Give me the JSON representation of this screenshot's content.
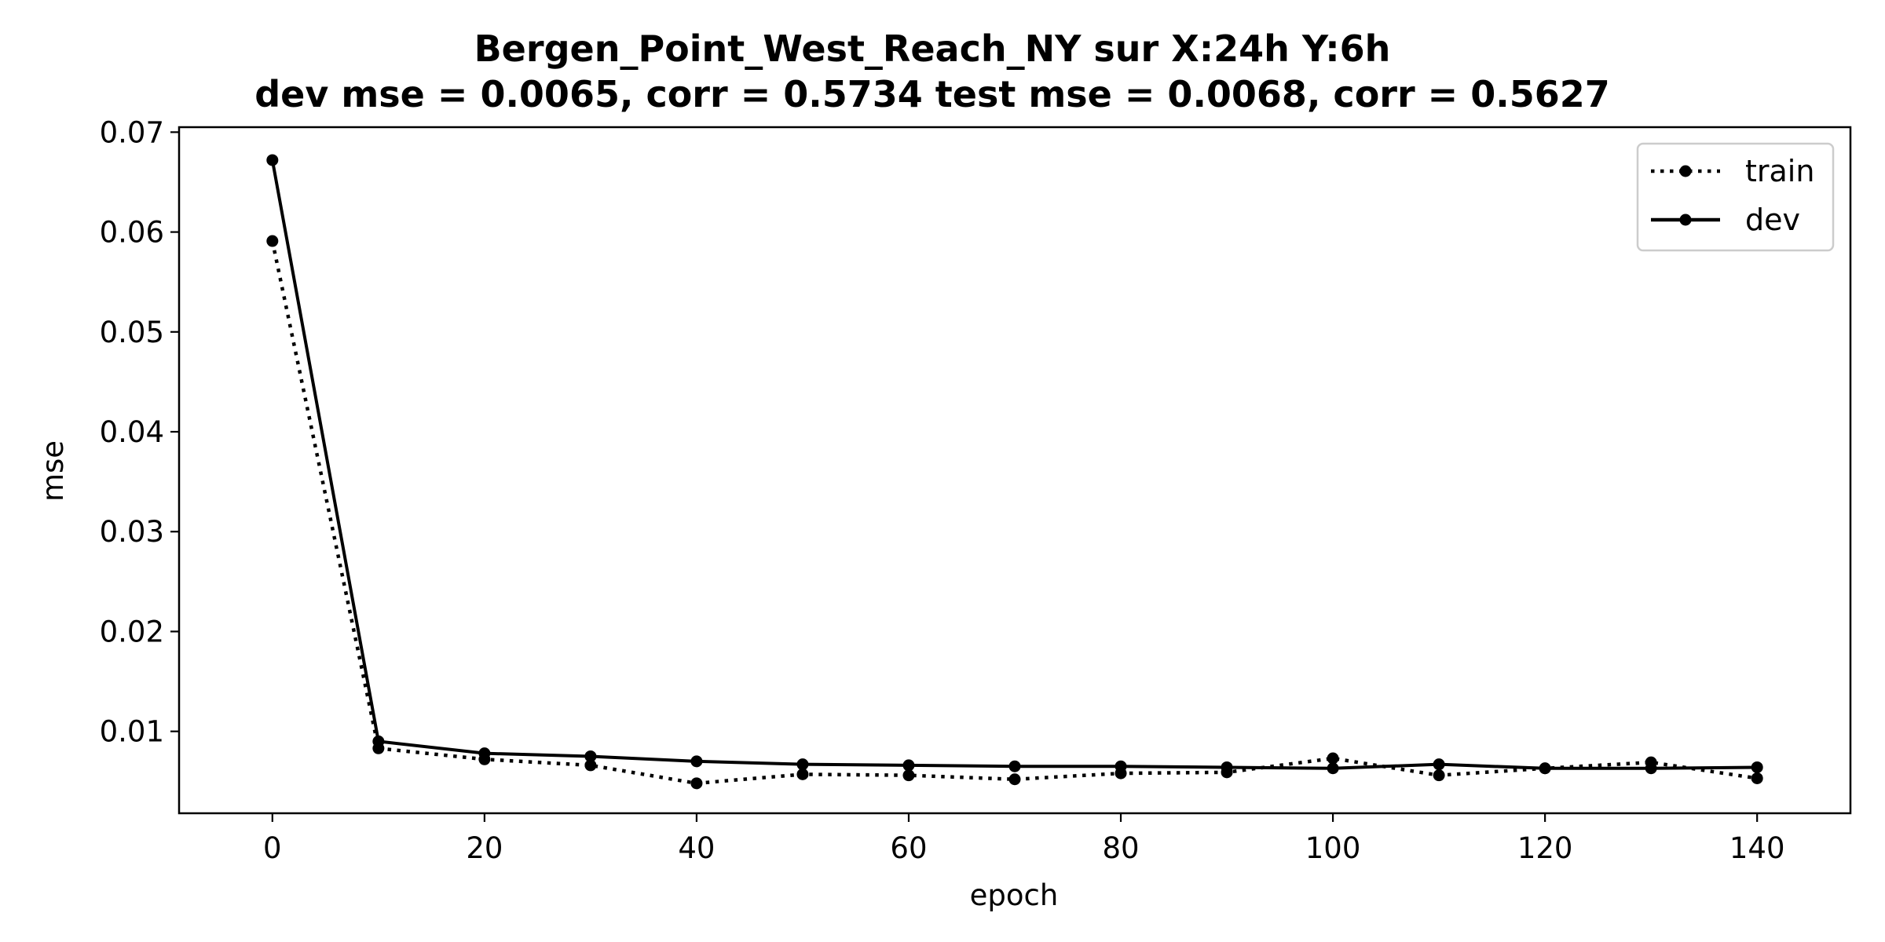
{
  "chart_data": {
    "type": "line",
    "title": "Bergen_Point_West_Reach_NY   sur   X:24h   Y:6h",
    "subtitle": "dev mse = 0.0065, corr = 0.5734   test mse = 0.0068, corr = 0.5627",
    "xlabel": "epoch",
    "ylabel": "mse",
    "xlim": [
      -8.8,
      148.8
    ],
    "ylim": [
      0.0018,
      0.0705
    ],
    "x_ticks": [
      0,
      20,
      40,
      60,
      80,
      100,
      120,
      140
    ],
    "x_tick_labels": [
      "0",
      "20",
      "40",
      "60",
      "80",
      "100",
      "120",
      "140"
    ],
    "y_ticks": [
      0.01,
      0.02,
      0.03,
      0.04,
      0.05,
      0.06,
      0.07
    ],
    "y_tick_labels": [
      "0.01",
      "0.02",
      "0.03",
      "0.04",
      "0.05",
      "0.06",
      "0.07"
    ],
    "grid": false,
    "legend_position": "top-right",
    "x": [
      0,
      10,
      20,
      30,
      40,
      50,
      60,
      70,
      80,
      90,
      100,
      110,
      120,
      130,
      140
    ],
    "series": [
      {
        "name": "train",
        "line_style": "dotted",
        "marker": "circle",
        "color": "#000000",
        "values": [
          0.0591,
          0.0083,
          0.0072,
          0.0066,
          0.0048,
          0.0057,
          0.0056,
          0.0052,
          0.0058,
          0.0059,
          0.0073,
          0.0056,
          0.0063,
          0.0069,
          0.0053
        ]
      },
      {
        "name": "dev",
        "line_style": "solid",
        "marker": "circle",
        "color": "#000000",
        "values": [
          0.0672,
          0.009,
          0.0078,
          0.0075,
          0.007,
          0.0067,
          0.0066,
          0.0065,
          0.0065,
          0.0064,
          0.0063,
          0.0067,
          0.0063,
          0.0063,
          0.0064
        ]
      }
    ]
  }
}
